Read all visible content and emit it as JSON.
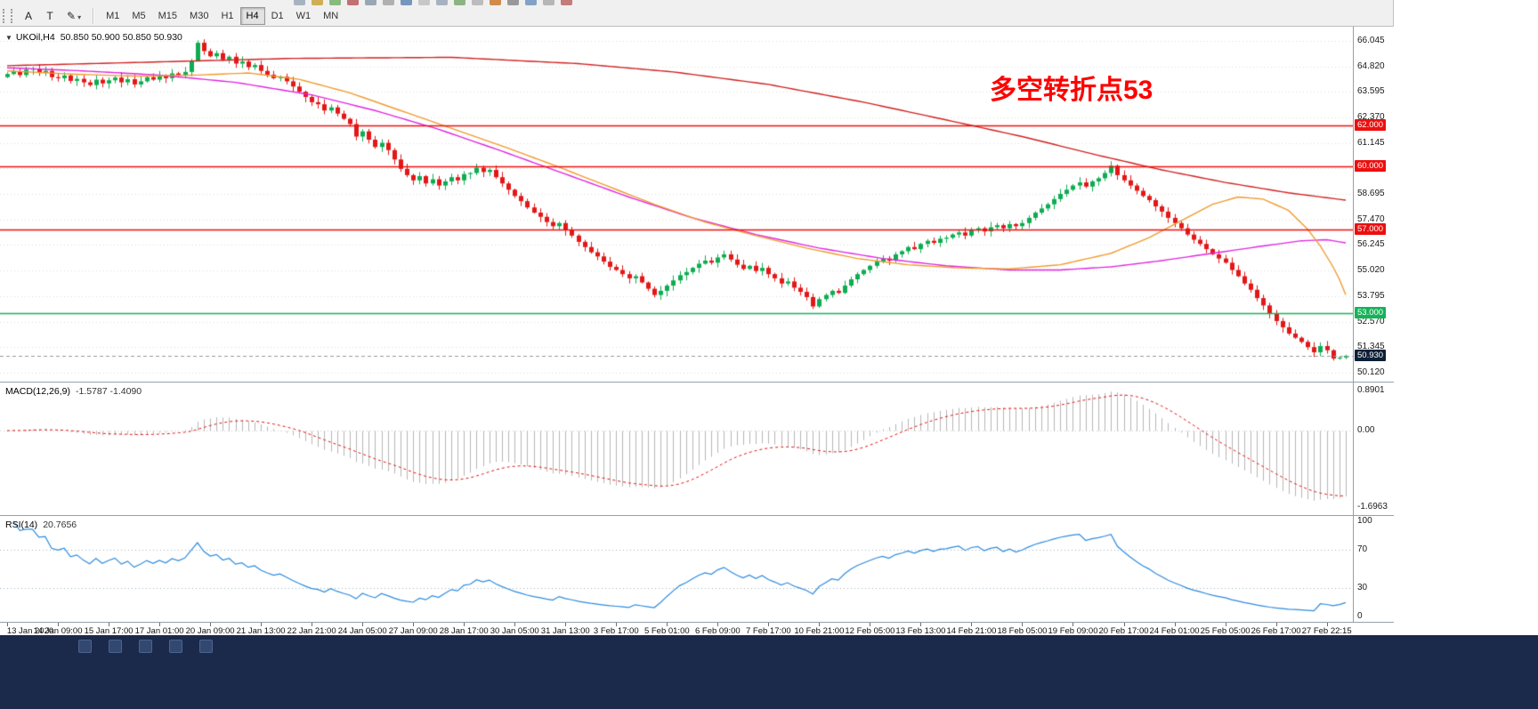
{
  "toolbar": {
    "tool_buttons": [
      {
        "label": "A"
      },
      {
        "label": "T"
      }
    ],
    "timeframes": [
      {
        "label": "M1"
      },
      {
        "label": "M5"
      },
      {
        "label": "M15"
      },
      {
        "label": "M30"
      },
      {
        "label": "H1"
      },
      {
        "label": "H4",
        "active": true
      },
      {
        "label": "D1"
      },
      {
        "label": "W1"
      },
      {
        "label": "MN"
      }
    ],
    "clipped_icon_colors": [
      "#9aa7b8",
      "#c9a23a",
      "#76b06a",
      "#b85a5a",
      "#8899aa",
      "#a5a5a5",
      "#5f87b5",
      "#c0c0c0",
      "#9aa7b8",
      "#7aa86e",
      "#b3b3b3",
      "#c9792e",
      "#8a8a8a",
      "#6f94c0",
      "#ababab",
      "#bb6666"
    ]
  },
  "chart": {
    "title": "UKOil,H4",
    "ohlc": "50.850 50.900 50.850 50.930",
    "annotation": {
      "text": "多空转折点53",
      "color": "#ff0000"
    },
    "price_scale_labels": [
      "66.045",
      "64.820",
      "63.595",
      "62.370",
      "61.145",
      "59.920",
      "58.695",
      "57.470",
      "56.245",
      "55.020",
      "53.795",
      "52.570",
      "51.345",
      "50.120"
    ],
    "hlines": [
      {
        "price": 62.0,
        "label": "62.000",
        "color": "#ec0f0f"
      },
      {
        "price": 60.0,
        "label": "60.000",
        "color": "#ec0f0f"
      },
      {
        "price": 57.0,
        "label": "57.000",
        "color": "#ec0f0f"
      },
      {
        "price": 53.0,
        "label": "53.000",
        "color": "#15b358"
      }
    ],
    "current_price": {
      "price": 50.93,
      "label": "50.930",
      "badge_color": "#0c1f38"
    },
    "time_axis_labels": [
      "13 Jan 2020",
      "14 Jan 09:00",
      "15 Jan 17:00",
      "17 Jan 01:00",
      "20 Jan 09:00",
      "21 Jan 13:00",
      "22 Jan 21:00",
      "24 Jan 05:00",
      "27 Jan 09:00",
      "28 Jan 17:00",
      "30 Jan 05:00",
      "31 Jan 13:00",
      "3 Feb 17:00",
      "5 Feb 01:00",
      "6 Feb 09:00",
      "7 Feb 17:00",
      "10 Feb 21:00",
      "12 Feb 05:00",
      "13 Feb 13:00",
      "14 Feb 21:00",
      "18 Feb 05:00",
      "19 Feb 09:00",
      "20 Feb 17:00",
      "24 Feb 01:00",
      "25 Feb 05:00",
      "26 Feb 17:00",
      "27 Feb 22:15"
    ]
  },
  "macd": {
    "name": "MACD(12,26,9)",
    "values": "-1.5787 -1.4090",
    "scale": [
      {
        "text": "0.8901",
        "value": 0.8901
      },
      {
        "text": "0.00",
        "value": 0
      },
      {
        "text": "-1.6963",
        "value": -1.6963
      }
    ]
  },
  "rsi": {
    "name": "RSI(14)",
    "value": "20.7656",
    "levels": [
      70,
      30
    ],
    "scale": [
      {
        "text": "100",
        "value": 100
      },
      {
        "text": "70",
        "value": 70
      },
      {
        "text": "30",
        "value": 30
      },
      {
        "text": "0",
        "value": 0
      }
    ]
  },
  "colors": {
    "candle_up": "#0eac52",
    "candle_down": "#e31717",
    "grid": "#dcdcdc",
    "macd_hist": "#b6b6b6",
    "macd_signal": "#e01212",
    "rsi_line": "#2d8bdd",
    "current_price_line": "#9a9a9a"
  },
  "taskbar": {
    "icon_count": 5
  },
  "chart_data": {
    "type": "candlestick",
    "symbol": "UKOil",
    "timeframe": "H4",
    "title": "UKOil H4 with MACD(12,26,9) and RSI(14)",
    "price_range": [
      49.95,
      66.55
    ],
    "grid": {
      "base": 50.12,
      "step": 1.225
    },
    "bars_per_time_tick": 8,
    "first_open": 64.3,
    "closes": [
      64.45,
      64.58,
      64.4,
      64.66,
      64.7,
      64.52,
      64.6,
      64.3,
      64.25,
      64.38,
      64.12,
      64.22,
      64.05,
      63.92,
      64.18,
      64.0,
      64.15,
      64.28,
      64.05,
      64.2,
      63.95,
      64.1,
      64.3,
      64.18,
      64.35,
      64.25,
      64.48,
      64.4,
      64.55,
      65.1,
      65.95,
      65.55,
      65.3,
      65.45,
      65.15,
      65.28,
      64.95,
      65.05,
      64.78,
      64.88,
      64.6,
      64.42,
      64.25,
      64.32,
      64.1,
      63.85,
      63.6,
      63.35,
      63.1,
      63.0,
      62.7,
      62.85,
      62.55,
      62.3,
      62.05,
      61.45,
      61.7,
      61.3,
      60.95,
      61.15,
      60.8,
      60.35,
      59.9,
      59.6,
      59.35,
      59.55,
      59.2,
      59.4,
      59.1,
      59.3,
      59.5,
      59.35,
      59.65,
      59.7,
      59.95,
      59.75,
      59.85,
      59.5,
      59.2,
      58.9,
      58.6,
      58.35,
      58.05,
      57.8,
      57.6,
      57.35,
      57.15,
      57.3,
      56.95,
      56.7,
      56.4,
      56.15,
      55.9,
      55.7,
      55.45,
      55.2,
      55.05,
      54.85,
      54.65,
      54.75,
      54.45,
      54.15,
      53.85,
      54.05,
      54.3,
      54.55,
      54.8,
      54.95,
      55.15,
      55.35,
      55.5,
      55.4,
      55.65,
      55.8,
      55.55,
      55.3,
      55.1,
      55.25,
      55.0,
      55.15,
      54.85,
      54.65,
      54.4,
      54.5,
      54.2,
      54.0,
      53.75,
      53.3,
      53.65,
      53.85,
      54.05,
      53.95,
      54.3,
      54.6,
      54.85,
      55.05,
      55.25,
      55.45,
      55.6,
      55.5,
      55.8,
      55.95,
      56.15,
      56.05,
      56.3,
      56.45,
      56.35,
      56.55,
      56.6,
      56.75,
      56.85,
      56.7,
      56.95,
      57.05,
      56.9,
      57.1,
      57.2,
      57.05,
      57.25,
      57.15,
      57.3,
      57.55,
      57.8,
      58.0,
      58.2,
      58.45,
      58.7,
      58.9,
      59.1,
      59.25,
      59.05,
      59.3,
      59.45,
      59.7,
      60.05,
      59.6,
      59.35,
      59.1,
      58.85,
      58.6,
      58.4,
      58.1,
      57.85,
      57.55,
      57.3,
      57.05,
      56.75,
      56.5,
      56.3,
      56.05,
      55.8,
      55.6,
      55.4,
      55.05,
      54.75,
      54.4,
      54.1,
      53.7,
      53.35,
      52.95,
      52.6,
      52.3,
      52.0,
      51.8,
      51.6,
      51.35,
      51.1,
      51.4,
      51.2,
      50.8,
      50.85,
      50.93
    ],
    "ma_overlays": [
      {
        "name": "ma-slow",
        "color": "#d02020",
        "anchors": [
          [
            0,
            64.85
          ],
          [
            20,
            65.0
          ],
          [
            45,
            65.2
          ],
          [
            70,
            65.25
          ],
          [
            90,
            64.95
          ],
          [
            105,
            64.55
          ],
          [
            120,
            63.95
          ],
          [
            135,
            63.1
          ],
          [
            148,
            62.25
          ],
          [
            160,
            61.45
          ],
          [
            172,
            60.55
          ],
          [
            182,
            59.85
          ],
          [
            192,
            59.25
          ],
          [
            202,
            58.75
          ],
          [
            211,
            58.4
          ]
        ]
      },
      {
        "name": "ma-medium",
        "color": "#e026e0",
        "anchors": [
          [
            0,
            64.75
          ],
          [
            12,
            64.6
          ],
          [
            24,
            64.4
          ],
          [
            36,
            64.05
          ],
          [
            48,
            63.45
          ],
          [
            58,
            62.7
          ],
          [
            68,
            61.8
          ],
          [
            78,
            60.75
          ],
          [
            88,
            59.65
          ],
          [
            98,
            58.55
          ],
          [
            108,
            57.55
          ],
          [
            118,
            56.75
          ],
          [
            128,
            56.1
          ],
          [
            138,
            55.6
          ],
          [
            148,
            55.25
          ],
          [
            158,
            55.05
          ],
          [
            166,
            55.05
          ],
          [
            174,
            55.2
          ],
          [
            182,
            55.5
          ],
          [
            190,
            55.85
          ],
          [
            198,
            56.2
          ],
          [
            204,
            56.45
          ],
          [
            208,
            56.5
          ],
          [
            211,
            56.35
          ]
        ]
      },
      {
        "name": "ma-fast",
        "color": "#ef9b2d",
        "anchors": [
          [
            0,
            64.6
          ],
          [
            10,
            64.45
          ],
          [
            20,
            64.35
          ],
          [
            30,
            64.4
          ],
          [
            38,
            64.5
          ],
          [
            46,
            64.2
          ],
          [
            54,
            63.55
          ],
          [
            62,
            62.7
          ],
          [
            70,
            61.85
          ],
          [
            78,
            61.0
          ],
          [
            86,
            60.1
          ],
          [
            94,
            59.15
          ],
          [
            102,
            58.2
          ],
          [
            110,
            57.35
          ],
          [
            118,
            56.7
          ],
          [
            126,
            56.1
          ],
          [
            134,
            55.6
          ],
          [
            142,
            55.3
          ],
          [
            150,
            55.15
          ],
          [
            158,
            55.1
          ],
          [
            166,
            55.3
          ],
          [
            174,
            55.85
          ],
          [
            180,
            56.6
          ],
          [
            185,
            57.4
          ],
          [
            190,
            58.2
          ],
          [
            194,
            58.55
          ],
          [
            198,
            58.45
          ],
          [
            202,
            57.9
          ],
          [
            205,
            57.0
          ],
          [
            207,
            56.2
          ],
          [
            209,
            55.2
          ],
          [
            210,
            54.6
          ],
          [
            211,
            53.85
          ]
        ]
      }
    ],
    "indicators": [
      {
        "name": "MACD",
        "params": [
          12,
          26,
          9
        ],
        "current_main": -1.5787,
        "current_signal": -1.409,
        "scale_top": 0.8901,
        "scale_bottom": -1.6963
      },
      {
        "name": "RSI",
        "params": [
          14
        ],
        "current": 20.7656,
        "levels": [
          70,
          30
        ],
        "scale": [
          0,
          100
        ]
      }
    ]
  }
}
